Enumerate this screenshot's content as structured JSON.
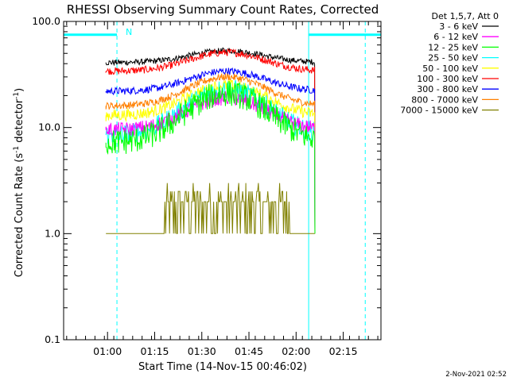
{
  "chart_data": {
    "type": "line",
    "title": "RHESSI Observing Summary Count Rates, Corrected",
    "xlabel": "Start Time (14-Nov-15 00:46:02)",
    "ylabel_main": "Corrected Count Rate (s",
    "ylabel_sup1": "-1",
    "ylabel_mid": " detector",
    "ylabel_sup2": "-1",
    "ylabel_end": ")",
    "yscale": "log",
    "ylim": [
      0.1,
      100.0
    ],
    "xlim": [
      "00:46:02",
      "02:27:00"
    ],
    "y_ticks": [
      {
        "value": 0.1,
        "label": "0.1"
      },
      {
        "value": 1.0,
        "label": "1.0"
      },
      {
        "value": 10.0,
        "label": "10.0"
      },
      {
        "value": 100.0,
        "label": "100.0"
      }
    ],
    "x_ticks": [
      "01:00",
      "01:15",
      "01:30",
      "01:45",
      "02:00",
      "02:15"
    ],
    "legend_header": "Det 1,5,7, Att 0",
    "legend_placement": "top-right, outside plot",
    "annotation_N": "N",
    "timestamp": "2-Nov-2021 02:52",
    "data_interval": [
      "00:59:30",
      "02:06:00"
    ],
    "series": [
      {
        "name": "3 - 6 keV",
        "color": "#000000",
        "base": 41,
        "peak": 53,
        "peak_time": "01:38",
        "noise": 0.04
      },
      {
        "name": "6 - 12 keV",
        "color": "#ff00ff",
        "base": 9.5,
        "peak": 19,
        "peak_time": "01:38",
        "noise": 0.1
      },
      {
        "name": "12 - 25 keV",
        "color": "#00ff00",
        "base": 7.2,
        "peak": 21,
        "peak_time": "01:38",
        "noise": 0.18
      },
      {
        "name": "25 - 50 keV",
        "color": "#00ffff",
        "base": 8.5,
        "peak": 23,
        "peak_time": "01:38",
        "noise": 0.14
      },
      {
        "name": "50 - 100 keV",
        "color": "#ffff00",
        "base": 13,
        "peak": 25,
        "peak_time": "01:38",
        "noise": 0.08
      },
      {
        "name": "100 - 300 keV",
        "color": "#ff0000",
        "base": 34,
        "peak": 51,
        "peak_time": "01:38",
        "noise": 0.05
      },
      {
        "name": "300 - 800 keV",
        "color": "#0000ff",
        "base": 22,
        "peak": 34,
        "peak_time": "01:38",
        "noise": 0.05
      },
      {
        "name": "800 - 7000 keV",
        "color": "#ff8000",
        "base": 16,
        "peak": 30,
        "peak_time": "01:38",
        "noise": 0.05
      },
      {
        "name": "7000 - 15000 keV",
        "color": "#808000",
        "base": 1.0,
        "peak": 2.0,
        "peak_time": "01:38",
        "noise": 0.15
      }
    ],
    "mode_bars": {
      "color": "#00ffff",
      "value": 75,
      "segments": [
        [
          "00:46:02",
          "01:03:00"
        ],
        [
          "02:04:00",
          "02:27:00"
        ]
      ],
      "solid_lines": [
        "00:46:02",
        "02:04:00"
      ],
      "dashed_lines": [
        "01:03:00",
        "02:22:00"
      ]
    }
  }
}
